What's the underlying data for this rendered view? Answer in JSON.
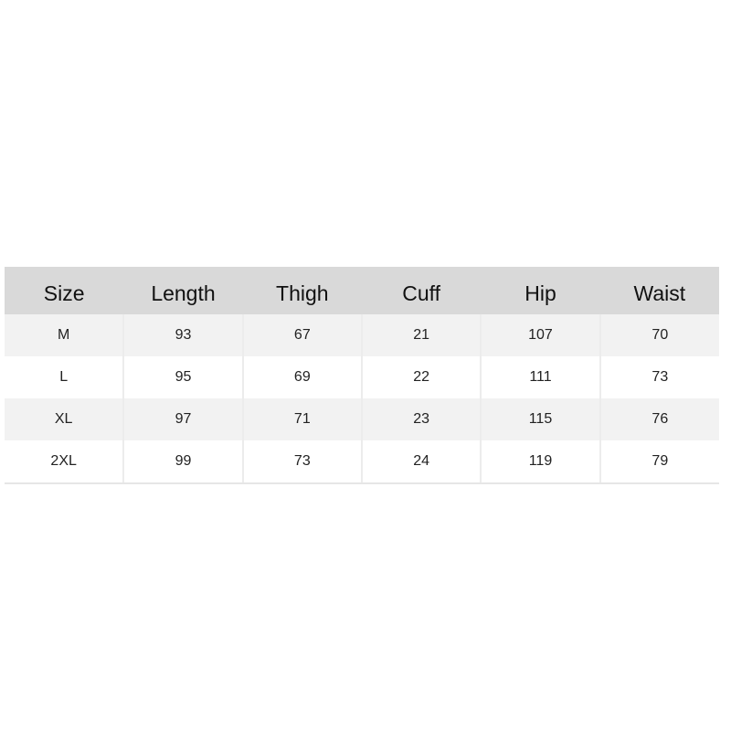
{
  "table": {
    "headers": [
      "Size",
      "Length",
      "Thigh",
      "Cuff",
      "Hip",
      "Waist"
    ],
    "rows": [
      [
        "M",
        "93",
        "67",
        "21",
        "107",
        "70"
      ],
      [
        "L",
        "95",
        "69",
        "22",
        "111",
        "73"
      ],
      [
        "XL",
        "97",
        "71",
        "23",
        "115",
        "76"
      ],
      [
        "2XL",
        "99",
        "73",
        "24",
        "119",
        "79"
      ]
    ]
  },
  "colors": {
    "header_bg": "#d9d9d9",
    "stripe_bg": "#f2f2f2"
  }
}
